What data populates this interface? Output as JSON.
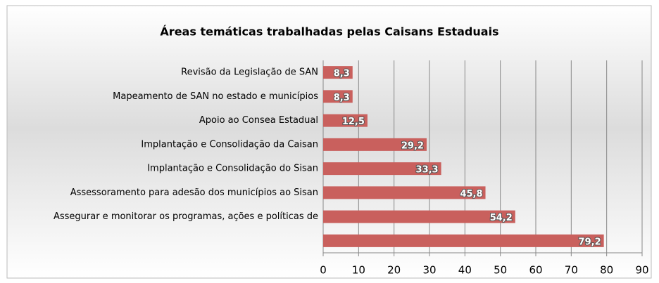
{
  "chart_data": {
    "type": "bar",
    "orientation": "horizontal",
    "title": "Áreas temáticas trabalhadas pelas Caisans Estaduais",
    "categories": [
      "Revisão da Legislação de SAN",
      "Mapeamento de SAN no estado e municípios",
      "Apoio ao Consea Estadual",
      "Implantação e Consolidação da Caisan",
      "Implantação e Consolidação do Sisan ",
      "Assessoramento para adesão dos municípios ao Sisan",
      "Assegurar e monitorar os programas, ações e políticas de",
      null
    ],
    "values": [
      8.3,
      8.3,
      12.5,
      29.2,
      33.3,
      45.8,
      54.2,
      79.2
    ],
    "value_labels": [
      "8,3",
      "8,3",
      "12,5",
      "29,2",
      "33,3",
      "45,8",
      "54,2",
      "79,2"
    ],
    "color": "#c9605d",
    "xlim": [
      0,
      90
    ],
    "xticks": [
      0,
      10,
      20,
      30,
      40,
      50,
      60,
      70,
      80,
      90
    ],
    "grid": true
  }
}
